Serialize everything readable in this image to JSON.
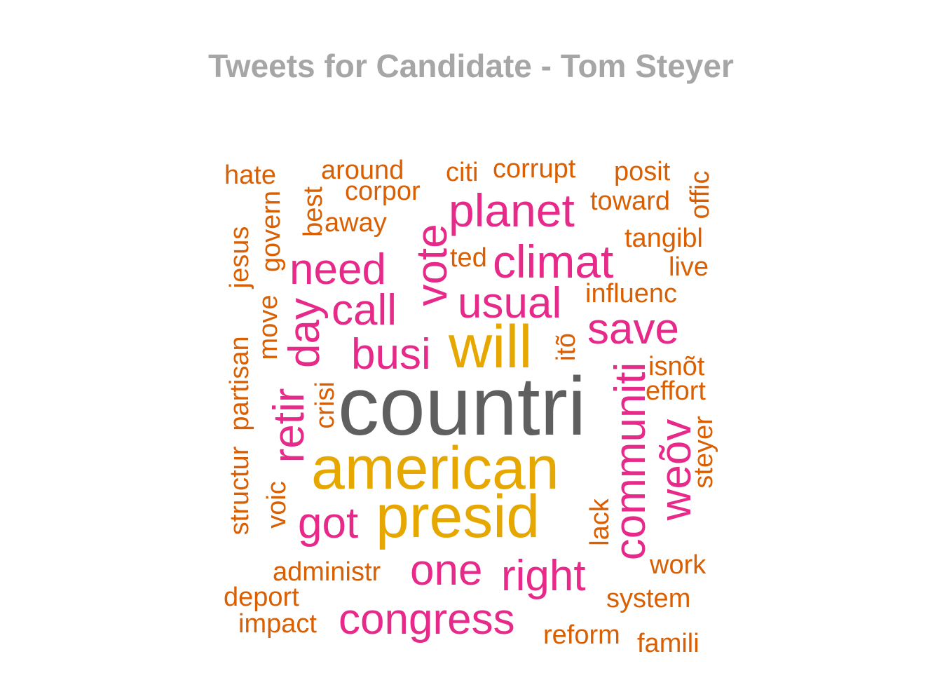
{
  "title": "Tweets for Candidate - Tom Steyer",
  "colors": {
    "title": "#a6a6a6",
    "gray": "#5f5f5f",
    "gold": "#e6a800",
    "pink": "#e7298a",
    "orange": "#d95f02"
  },
  "words": [
    {
      "text": "countri",
      "color": "gray"
    },
    {
      "text": "american",
      "color": "gold"
    },
    {
      "text": "presid",
      "color": "gold"
    },
    {
      "text": "will",
      "color": "gold"
    },
    {
      "text": "planet",
      "color": "pink"
    },
    {
      "text": "climat",
      "color": "pink"
    },
    {
      "text": "need",
      "color": "pink"
    },
    {
      "text": "vote",
      "color": "pink"
    },
    {
      "text": "usual",
      "color": "pink"
    },
    {
      "text": "call",
      "color": "pink"
    },
    {
      "text": "save",
      "color": "pink"
    },
    {
      "text": "busi",
      "color": "pink"
    },
    {
      "text": "day",
      "color": "pink"
    },
    {
      "text": "retir",
      "color": "pink"
    },
    {
      "text": "communiti",
      "color": "pink"
    },
    {
      "text": "weõv",
      "color": "pink"
    },
    {
      "text": "got",
      "color": "pink"
    },
    {
      "text": "one",
      "color": "pink"
    },
    {
      "text": "right",
      "color": "pink"
    },
    {
      "text": "congress",
      "color": "pink"
    },
    {
      "text": "hate",
      "color": "orange"
    },
    {
      "text": "around",
      "color": "orange"
    },
    {
      "text": "citi",
      "color": "orange"
    },
    {
      "text": "corrupt",
      "color": "orange"
    },
    {
      "text": "posit",
      "color": "orange"
    },
    {
      "text": "corpor",
      "color": "orange"
    },
    {
      "text": "toward",
      "color": "orange"
    },
    {
      "text": "offic",
      "color": "orange"
    },
    {
      "text": "best",
      "color": "orange"
    },
    {
      "text": "govern",
      "color": "orange"
    },
    {
      "text": "away",
      "color": "orange"
    },
    {
      "text": "jesus",
      "color": "orange"
    },
    {
      "text": "tangibl",
      "color": "orange"
    },
    {
      "text": "ted",
      "color": "orange"
    },
    {
      "text": "live",
      "color": "orange"
    },
    {
      "text": "influenc",
      "color": "orange"
    },
    {
      "text": "move",
      "color": "orange"
    },
    {
      "text": "itõ",
      "color": "orange"
    },
    {
      "text": "partisan",
      "color": "orange"
    },
    {
      "text": "isnõt",
      "color": "orange"
    },
    {
      "text": "effort",
      "color": "orange"
    },
    {
      "text": "crisi",
      "color": "orange"
    },
    {
      "text": "steyer",
      "color": "orange"
    },
    {
      "text": "structur",
      "color": "orange"
    },
    {
      "text": "voic",
      "color": "orange"
    },
    {
      "text": "lack",
      "color": "orange"
    },
    {
      "text": "work",
      "color": "orange"
    },
    {
      "text": "administr",
      "color": "orange"
    },
    {
      "text": "deport",
      "color": "orange"
    },
    {
      "text": "system",
      "color": "orange"
    },
    {
      "text": "impact",
      "color": "orange"
    },
    {
      "text": "reform",
      "color": "orange"
    },
    {
      "text": "famili",
      "color": "orange"
    }
  ]
}
